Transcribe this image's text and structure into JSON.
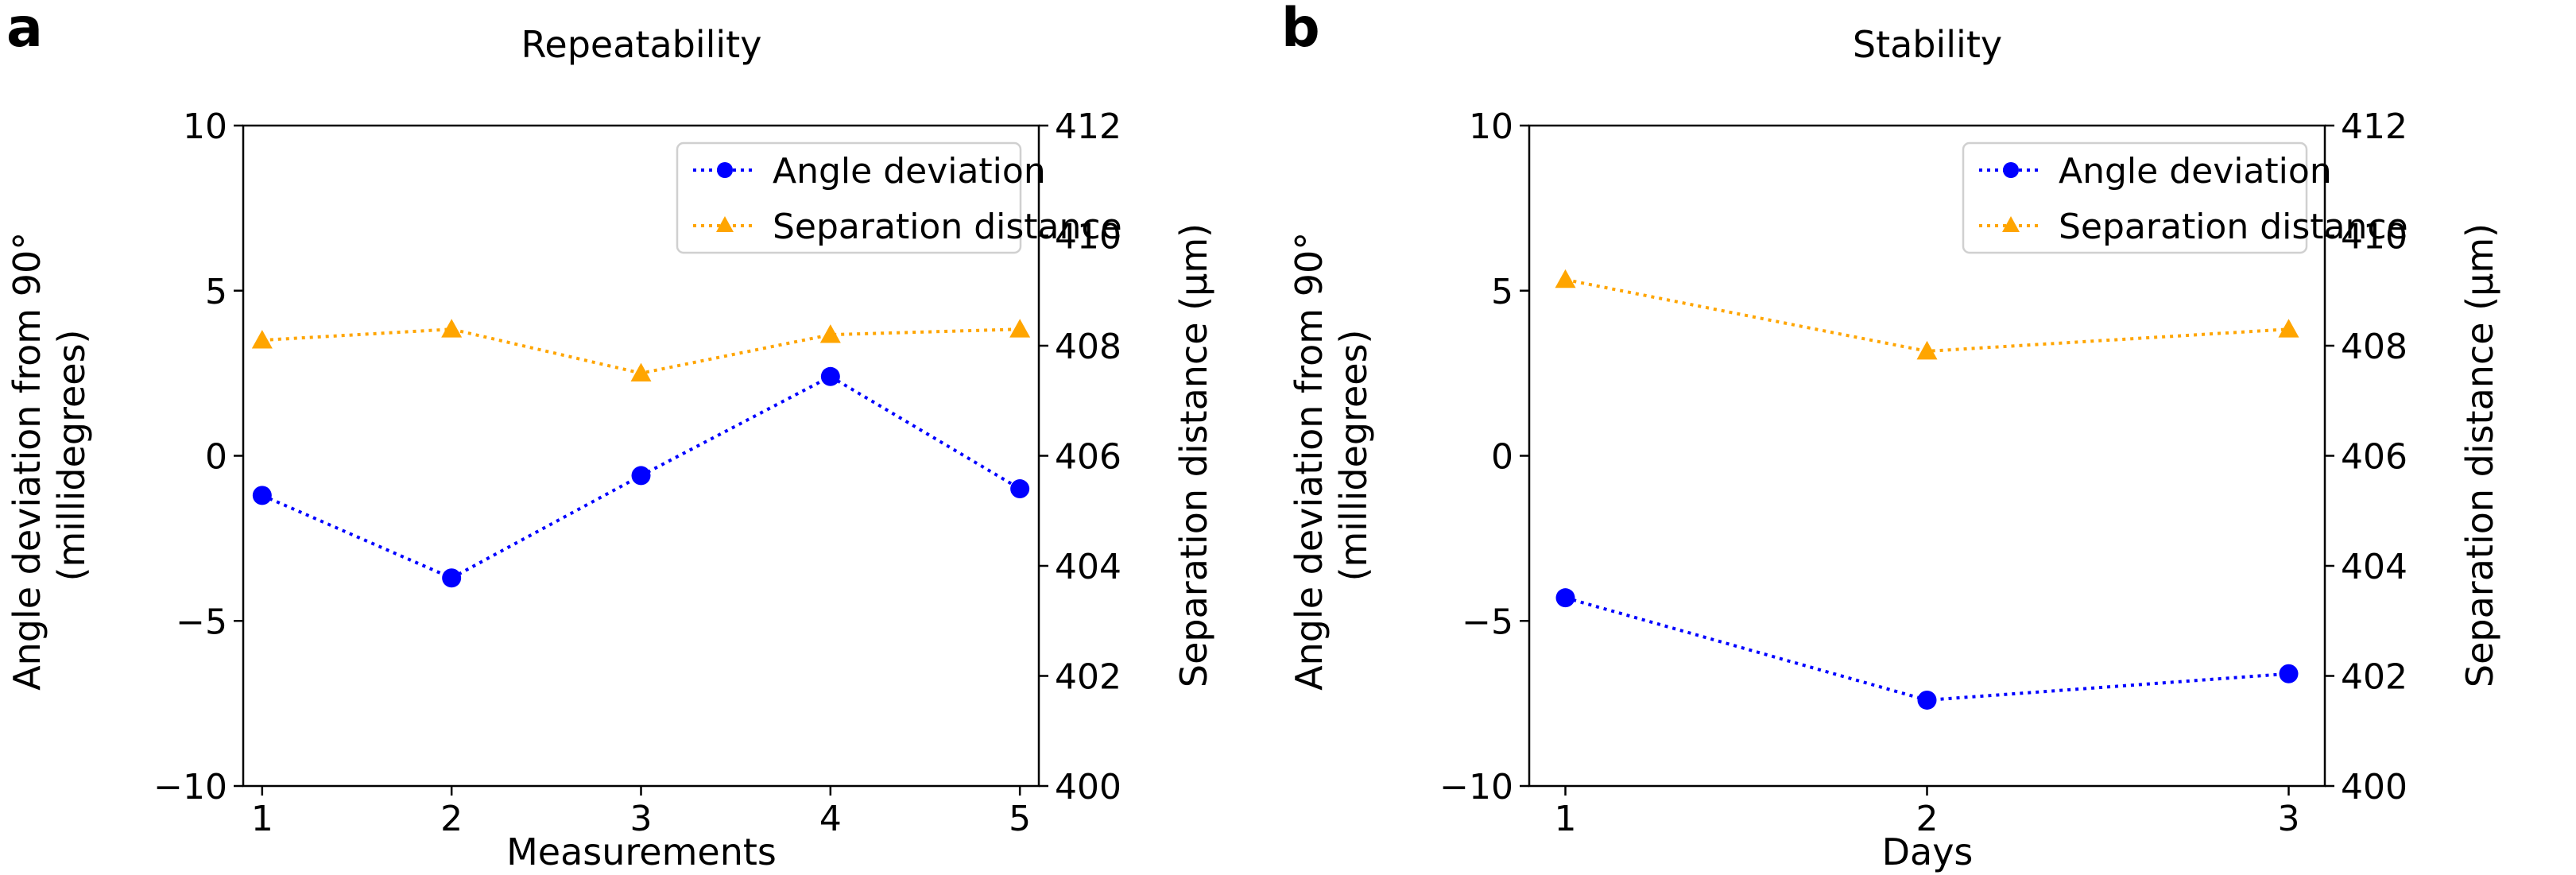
{
  "colors": {
    "angle": "#0000ff",
    "separation": "#ffa500"
  },
  "chart_data": [
    {
      "panel": "a",
      "type": "line",
      "title": "Repeatability",
      "xlabel": "Measurements",
      "ylabel_left": [
        "Angle deviation from 90°",
        "(millidegrees)"
      ],
      "ylabel_right": "Separation distance (µm)",
      "x": [
        1,
        2,
        3,
        4,
        5
      ],
      "xlim": [
        0.9,
        5.1
      ],
      "xticks": [
        1,
        2,
        3,
        4,
        5
      ],
      "xtick_labels": [
        "1",
        "2",
        "3",
        "4",
        "5"
      ],
      "ylim_left": [
        -10,
        10
      ],
      "yticks_left": [
        10,
        5,
        0,
        -5,
        -10
      ],
      "ytick_labels_left": [
        "10",
        "5",
        "0",
        "−5",
        "−10"
      ],
      "ylim_right": [
        400,
        412
      ],
      "yticks_right": [
        412,
        410,
        408,
        406,
        404,
        402,
        400
      ],
      "ytick_labels_right": [
        "412",
        "410",
        "408",
        "406",
        "404",
        "402",
        "400"
      ],
      "series": [
        {
          "name": "Angle deviation",
          "axis": "left",
          "marker": "circle",
          "linestyle": "dotted",
          "values": [
            -1.2,
            -3.7,
            -0.6,
            2.4,
            -1.0
          ]
        },
        {
          "name": "Separation distance",
          "axis": "right",
          "marker": "triangle",
          "linestyle": "dotted",
          "values": [
            408.1,
            408.3,
            407.5,
            408.2,
            408.3
          ]
        }
      ],
      "legend": {
        "location": "upper right",
        "entries": [
          "Angle deviation",
          "Separation distance"
        ]
      }
    },
    {
      "panel": "b",
      "type": "line",
      "title": "Stability",
      "xlabel": "Days",
      "ylabel_left": [
        "Angle deviation from 90°",
        "(millidegrees)"
      ],
      "ylabel_right": "Separation distance (µm)",
      "x": [
        1,
        2,
        3
      ],
      "xlim": [
        0.9,
        3.1
      ],
      "xticks": [
        1,
        2,
        3
      ],
      "xtick_labels": [
        "1",
        "2",
        "3"
      ],
      "ylim_left": [
        -10,
        10
      ],
      "yticks_left": [
        10,
        5,
        0,
        -5,
        -10
      ],
      "ytick_labels_left": [
        "10",
        "5",
        "0",
        "−5",
        "−10"
      ],
      "ylim_right": [
        400,
        412
      ],
      "yticks_right": [
        412,
        410,
        408,
        406,
        404,
        402,
        400
      ],
      "ytick_labels_right": [
        "412",
        "410",
        "408",
        "406",
        "404",
        "402",
        "400"
      ],
      "series": [
        {
          "name": "Angle deviation",
          "axis": "left",
          "marker": "circle",
          "linestyle": "dotted",
          "values": [
            -4.3,
            -7.4,
            -6.6
          ]
        },
        {
          "name": "Separation distance",
          "axis": "right",
          "marker": "triangle",
          "linestyle": "dotted",
          "values": [
            409.2,
            407.9,
            408.3
          ]
        }
      ],
      "legend": {
        "location": "upper right",
        "entries": [
          "Angle deviation",
          "Separation distance"
        ]
      }
    }
  ]
}
